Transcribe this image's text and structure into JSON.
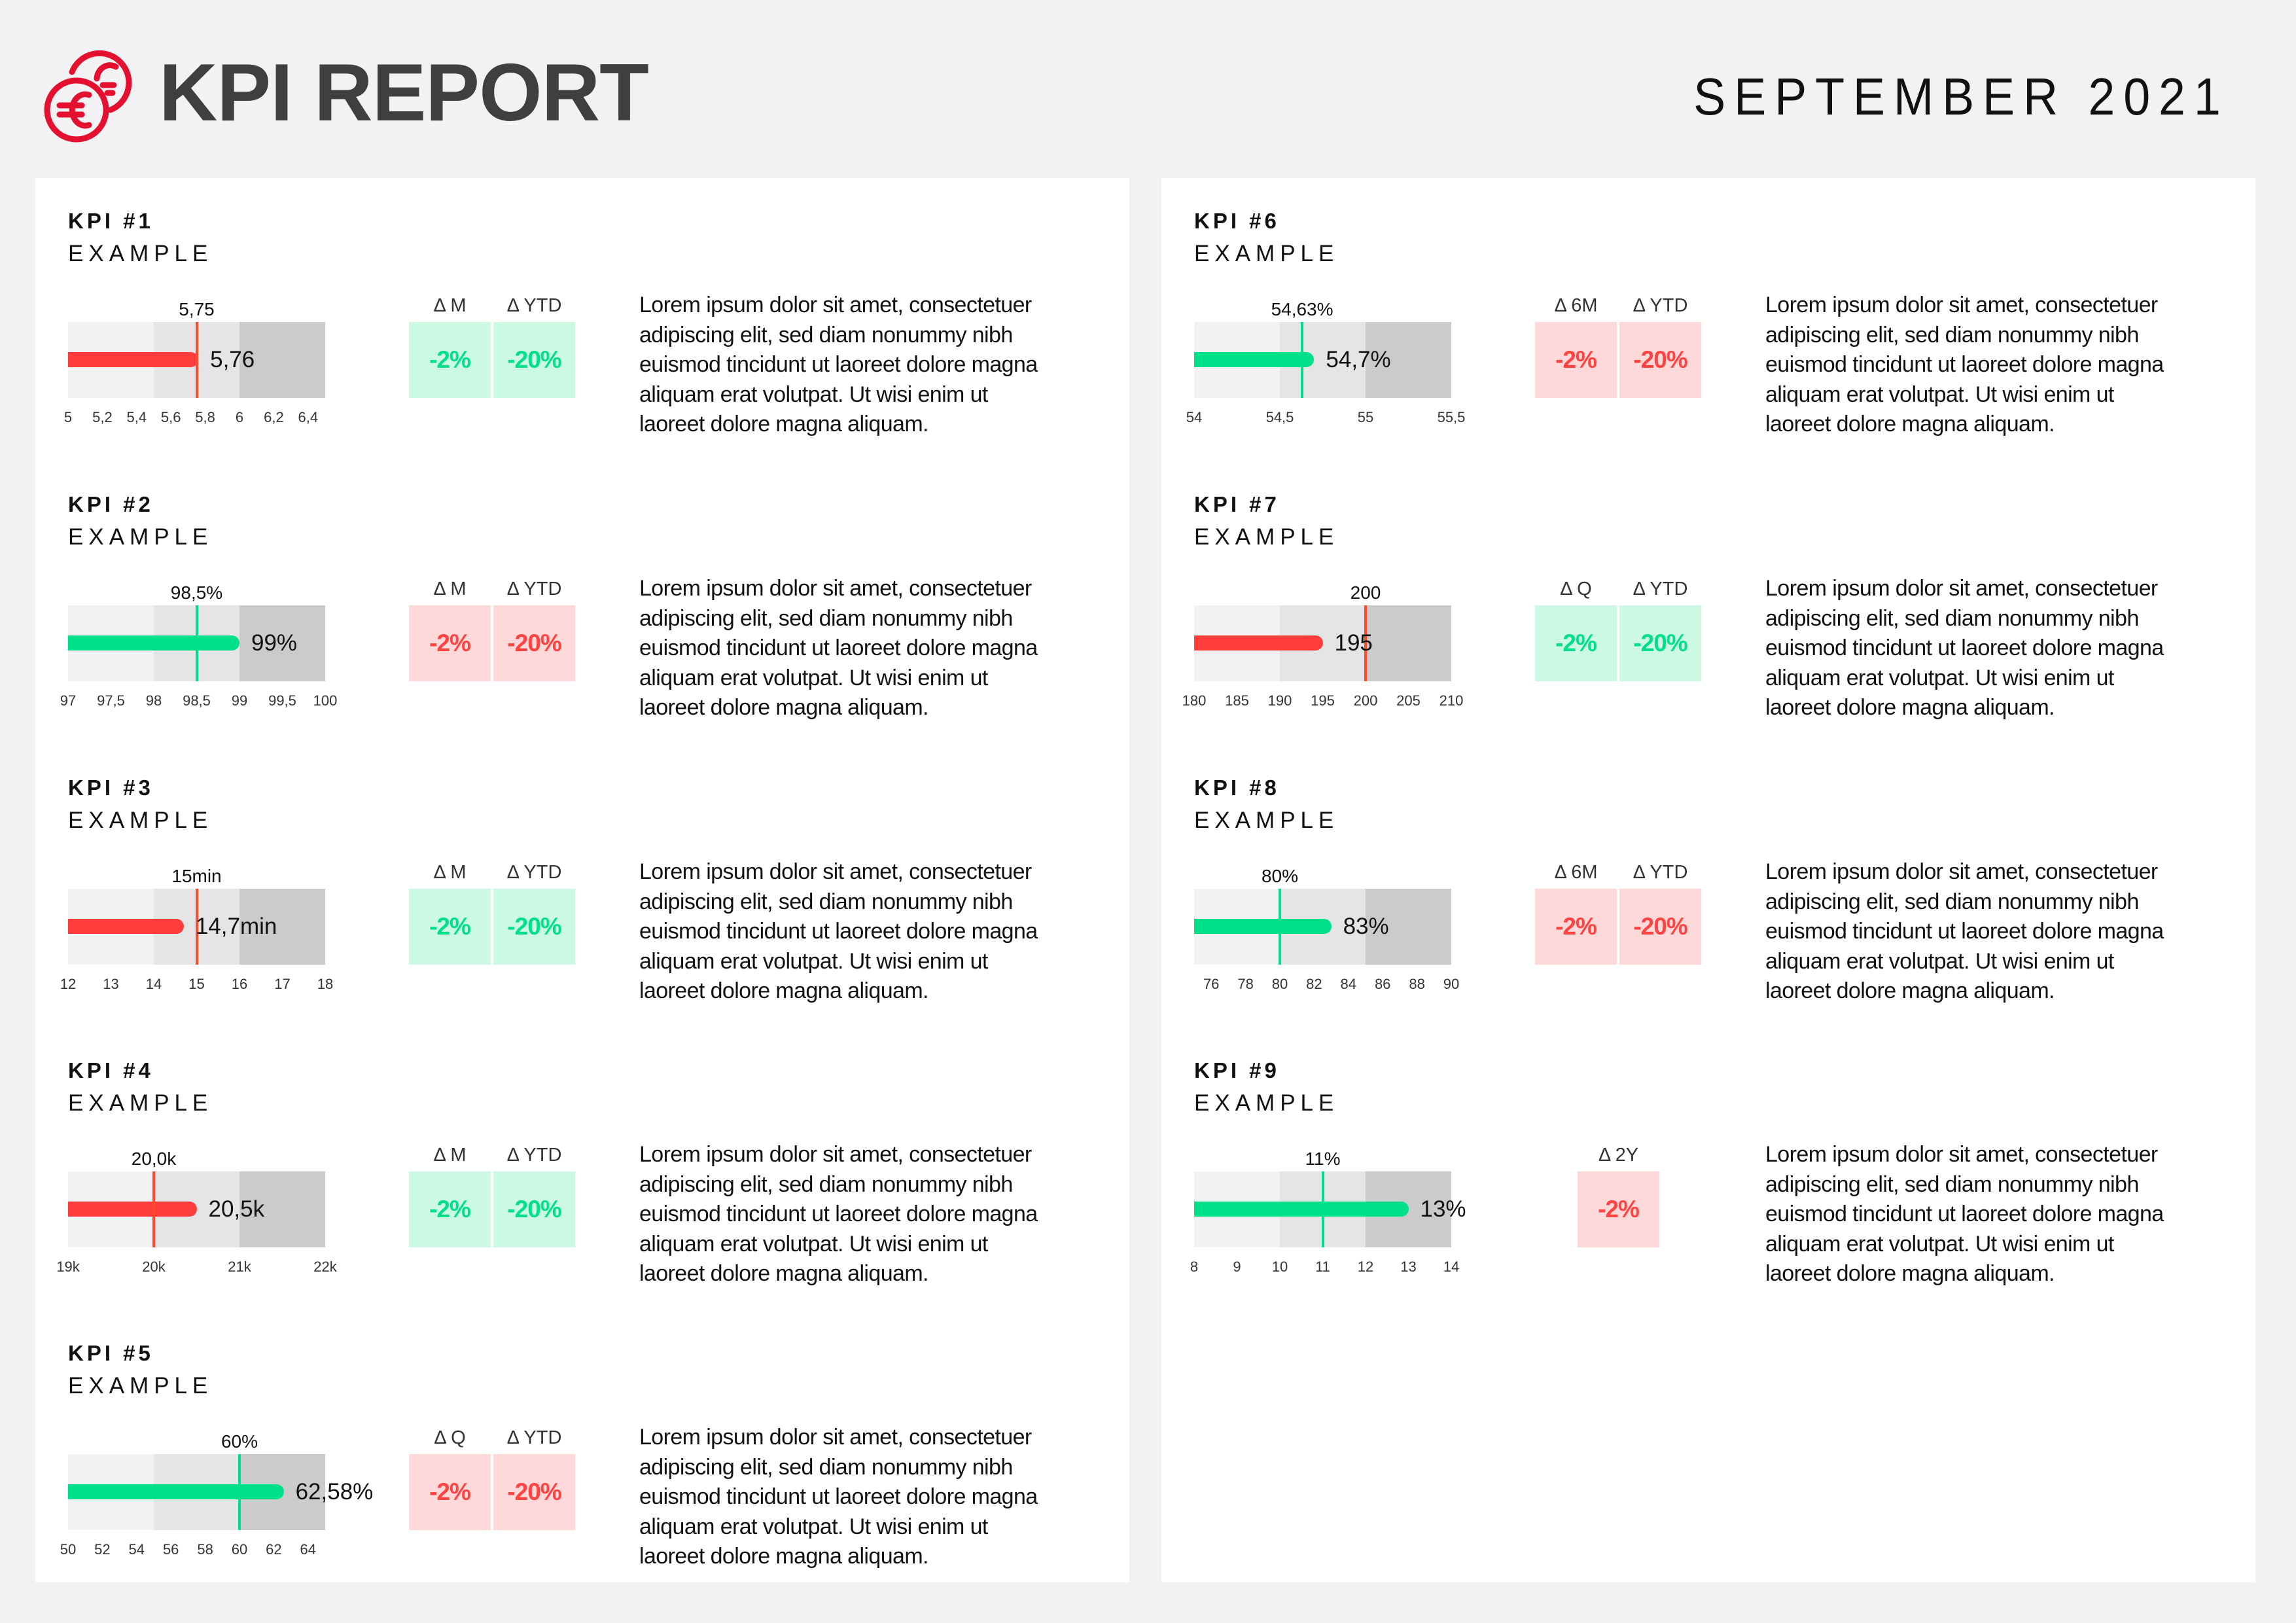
{
  "header": {
    "logo_icon": "euro-coins-icon",
    "title": "KPI REPORT",
    "date": "SEPTEMBER 2021",
    "brand_color": "#e3102f"
  },
  "colors": {
    "good_bar": "#00e08a",
    "bad_bar": "#ff3d3d",
    "bad_target": "#ff4b2b",
    "good_bg": "#ccf9e4",
    "good_text": "#00e08a",
    "bad_bg": "#ffd9d9",
    "bad_text": "#ff4242",
    "zone_1": "#f2f2f2",
    "zone_2": "#e5e5e5",
    "zone_3": "#cbcbcb"
  },
  "kpis": [
    {
      "title": "KPI #1",
      "subtitle": "EXAMPLE",
      "deltas": [
        {
          "label": "Δ M",
          "value": "-2%",
          "status": "good"
        },
        {
          "label": "Δ YTD",
          "value": "-20%",
          "status": "good"
        }
      ],
      "description": [
        "Lorem ipsum dolor sit amet, consectetuer",
        "adipiscing elit, sed diam nonummy nibh",
        "euismod tincidunt ut laoreet dolore magna",
        "aliquam erat volutpat. Ut wisi enim ut",
        "laoreet dolore magna aliquam."
      ]
    },
    {
      "title": "KPI #2",
      "subtitle": "EXAMPLE",
      "deltas": [
        {
          "label": "Δ M",
          "value": "-2%",
          "status": "bad"
        },
        {
          "label": "Δ YTD",
          "value": "-20%",
          "status": "bad"
        }
      ],
      "description": [
        "Lorem ipsum dolor sit amet, consectetuer",
        "adipiscing elit, sed diam nonummy nibh",
        "euismod tincidunt ut laoreet dolore magna",
        "aliquam erat volutpat. Ut wisi enim ut",
        "laoreet dolore magna aliquam."
      ]
    },
    {
      "title": "KPI #3",
      "subtitle": "EXAMPLE",
      "deltas": [
        {
          "label": "Δ M",
          "value": "-2%",
          "status": "good"
        },
        {
          "label": "Δ YTD",
          "value": "-20%",
          "status": "good"
        }
      ],
      "description": [
        "Lorem ipsum dolor sit amet, consectetuer",
        "adipiscing elit, sed diam nonummy nibh",
        "euismod tincidunt ut laoreet dolore magna",
        "aliquam erat volutpat. Ut wisi enim ut",
        "laoreet dolore magna aliquam."
      ]
    },
    {
      "title": "KPI #4",
      "subtitle": "EXAMPLE",
      "deltas": [
        {
          "label": "Δ M",
          "value": "-2%",
          "status": "good"
        },
        {
          "label": "Δ YTD",
          "value": "-20%",
          "status": "good"
        }
      ],
      "description": [
        "Lorem ipsum dolor sit amet, consectetuer",
        "adipiscing elit, sed diam nonummy nibh",
        "euismod tincidunt ut laoreet dolore magna",
        "aliquam erat volutpat. Ut wisi enim ut",
        "laoreet dolore magna aliquam."
      ]
    },
    {
      "title": "KPI #5",
      "subtitle": "EXAMPLE",
      "deltas": [
        {
          "label": "Δ Q",
          "value": "-2%",
          "status": "bad"
        },
        {
          "label": "Δ YTD",
          "value": "-20%",
          "status": "bad"
        }
      ],
      "description": [
        "Lorem ipsum dolor sit amet, consectetuer",
        "adipiscing elit, sed diam nonummy nibh",
        "euismod tincidunt ut laoreet dolore magna",
        "aliquam erat volutpat. Ut wisi enim ut",
        "laoreet dolore magna aliquam."
      ]
    },
    {
      "title": "KPI #6",
      "subtitle": "EXAMPLE",
      "deltas": [
        {
          "label": "Δ 6M",
          "value": "-2%",
          "status": "bad"
        },
        {
          "label": "Δ YTD",
          "value": "-20%",
          "status": "bad"
        }
      ],
      "description": [
        "Lorem ipsum dolor sit amet, consectetuer",
        "adipiscing elit, sed diam nonummy nibh",
        "euismod tincidunt ut laoreet dolore magna",
        "aliquam erat volutpat. Ut wisi enim ut",
        "laoreet dolore magna aliquam."
      ]
    },
    {
      "title": "KPI #7",
      "subtitle": "EXAMPLE",
      "deltas": [
        {
          "label": "Δ Q",
          "value": "-2%",
          "status": "good"
        },
        {
          "label": "Δ YTD",
          "value": "-20%",
          "status": "good"
        }
      ],
      "description": [
        "Lorem ipsum dolor sit amet, consectetuer",
        "adipiscing elit, sed diam nonummy nibh",
        "euismod tincidunt ut laoreet dolore magna",
        "aliquam erat volutpat. Ut wisi enim ut",
        "laoreet dolore magna aliquam."
      ]
    },
    {
      "title": "KPI #8",
      "subtitle": "EXAMPLE",
      "deltas": [
        {
          "label": "Δ 6M",
          "value": "-2%",
          "status": "bad"
        },
        {
          "label": "Δ YTD",
          "value": "-20%",
          "status": "bad"
        }
      ],
      "description": [
        "Lorem ipsum dolor sit amet, consectetuer",
        "adipiscing elit, sed diam nonummy nibh",
        "euismod tincidunt ut laoreet dolore magna",
        "aliquam erat volutpat. Ut wisi enim ut",
        "laoreet dolore magna aliquam."
      ]
    },
    {
      "title": "KPI #9",
      "subtitle": "EXAMPLE",
      "deltas": [
        {
          "label": "Δ 2Y",
          "value": "-2%",
          "status": "bad"
        }
      ],
      "description": [
        "Lorem ipsum dolor sit amet, consectetuer",
        "adipiscing elit, sed diam nonummy nibh",
        "euismod tincidunt ut laoreet dolore magna",
        "aliquam erat volutpat. Ut wisi enim ut",
        "laoreet dolore magna aliquam."
      ]
    }
  ],
  "chart_data": [
    {
      "type": "bullet",
      "title": "KPI #1",
      "min": 5,
      "max": 6.5,
      "zones": [
        [
          5,
          5.5
        ],
        [
          5.5,
          6
        ],
        [
          6,
          6.5
        ]
      ],
      "target": 5.75,
      "target_label": "5,75",
      "value": 5.76,
      "value_label": "5,76",
      "status": "bad",
      "ticks": [
        5,
        5.2,
        5.4,
        5.6,
        5.8,
        6,
        6.2,
        6.4
      ],
      "tick_labels": [
        "5",
        "5,2",
        "5,4",
        "5,6",
        "5,8",
        "6",
        "6,2",
        "6,4"
      ]
    },
    {
      "type": "bullet",
      "title": "KPI #2",
      "min": 97,
      "max": 100,
      "zones": [
        [
          97,
          98
        ],
        [
          98,
          99
        ],
        [
          99,
          100
        ]
      ],
      "target": 98.5,
      "target_label": "98,5%",
      "value": 99,
      "value_label": "99%",
      "status": "good",
      "ticks": [
        97,
        97.5,
        98,
        98.5,
        99,
        99.5,
        100
      ],
      "tick_labels": [
        "97",
        "97,5",
        "98",
        "98,5",
        "99",
        "99,5",
        "100"
      ]
    },
    {
      "type": "bullet",
      "title": "KPI #3",
      "min": 12,
      "max": 18,
      "zones": [
        [
          12,
          14
        ],
        [
          14,
          16
        ],
        [
          16,
          18
        ]
      ],
      "target": 15,
      "target_label": "15min",
      "value": 14.7,
      "value_label": "14,7min",
      "status": "bad",
      "ticks": [
        12,
        13,
        14,
        15,
        16,
        17,
        18
      ],
      "tick_labels": [
        "12",
        "13",
        "14",
        "15",
        "16",
        "17",
        "18"
      ]
    },
    {
      "type": "bullet",
      "title": "KPI #4",
      "min": 19,
      "max": 22,
      "zones": [
        [
          19,
          20
        ],
        [
          20,
          21
        ],
        [
          21,
          22
        ]
      ],
      "target": 20.0,
      "target_label": "20,0k",
      "value": 20.5,
      "value_label": "20,5k",
      "status": "bad",
      "ticks": [
        19,
        20,
        21,
        22
      ],
      "tick_labels": [
        "19k",
        "20k",
        "21k",
        "22k"
      ]
    },
    {
      "type": "bullet",
      "title": "KPI #5",
      "min": 50,
      "max": 65,
      "zones": [
        [
          50,
          55
        ],
        [
          55,
          60
        ],
        [
          60,
          65
        ]
      ],
      "target": 60,
      "target_label": "60%",
      "value": 62.58,
      "value_label": "62,58%",
      "status": "good",
      "ticks": [
        50,
        52,
        54,
        56,
        58,
        60,
        62,
        64
      ],
      "tick_labels": [
        "50",
        "52",
        "54",
        "56",
        "58",
        "60",
        "62",
        "64"
      ]
    },
    {
      "type": "bullet",
      "title": "KPI #6",
      "min": 54,
      "max": 55.5,
      "zones": [
        [
          54,
          54.5
        ],
        [
          54.5,
          55
        ],
        [
          55,
          55.5
        ]
      ],
      "target": 54.63,
      "target_label": "54,63%",
      "value": 54.7,
      "value_label": "54,7%",
      "status": "good",
      "ticks": [
        54,
        54.5,
        55,
        55.5
      ],
      "tick_labels": [
        "54",
        "54,5",
        "55",
        "55,5"
      ]
    },
    {
      "type": "bullet",
      "title": "KPI #7",
      "min": 180,
      "max": 210,
      "zones": [
        [
          180,
          190
        ],
        [
          190,
          200
        ],
        [
          200,
          210
        ]
      ],
      "target": 200,
      "target_label": "200",
      "value": 195,
      "value_label": "195",
      "status": "bad",
      "ticks": [
        180,
        185,
        190,
        195,
        200,
        205,
        210
      ],
      "tick_labels": [
        "180",
        "185",
        "190",
        "195",
        "200",
        "205",
        "210"
      ]
    },
    {
      "type": "bullet",
      "title": "KPI #8",
      "min": 75,
      "max": 90,
      "zones": [
        [
          75,
          80
        ],
        [
          80,
          85
        ],
        [
          85,
          90
        ]
      ],
      "target": 80,
      "target_label": "80%",
      "value": 83,
      "value_label": "83%",
      "status": "good",
      "ticks": [
        76,
        78,
        80,
        82,
        84,
        86,
        88,
        90
      ],
      "tick_labels": [
        "76",
        "78",
        "80",
        "82",
        "84",
        "86",
        "88",
        "90"
      ]
    },
    {
      "type": "bullet",
      "title": "KPI #9",
      "min": 8,
      "max": 14,
      "zones": [
        [
          8,
          10
        ],
        [
          10,
          12
        ],
        [
          12,
          14
        ]
      ],
      "target": 11,
      "target_label": "11%",
      "value": 13,
      "value_label": "13%",
      "status": "good",
      "ticks": [
        8,
        9,
        10,
        11,
        12,
        13,
        14
      ],
      "tick_labels": [
        "8",
        "9",
        "10",
        "11",
        "12",
        "13",
        "14"
      ]
    }
  ]
}
